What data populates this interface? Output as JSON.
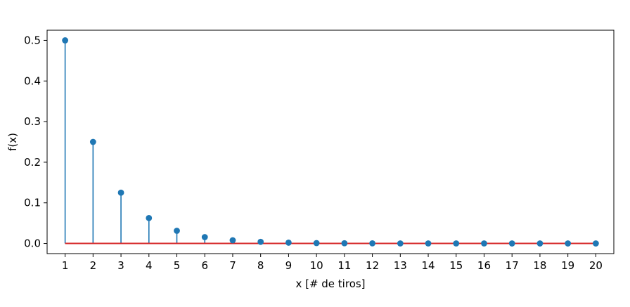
{
  "chart_data": {
    "type": "stem",
    "title": "",
    "xlabel": "x [# de tiros]",
    "ylabel": "f(x)",
    "x": [
      1,
      2,
      3,
      4,
      5,
      6,
      7,
      8,
      9,
      10,
      11,
      12,
      13,
      14,
      15,
      16,
      17,
      18,
      19,
      20
    ],
    "values": [
      0.5,
      0.25,
      0.125,
      0.0625,
      0.03125,
      0.015625,
      0.0078125,
      0.00390625,
      0.001953125,
      0.0009765625,
      0.00048828125,
      0.000244140625,
      0.0001220703125,
      6.103515625e-05,
      3.0517578125e-05,
      1.52587890625e-05,
      7.62939453125e-06,
      3.814697265625e-06,
      1.9073486328125e-06,
      9.5367431640625e-07
    ],
    "xticks": [
      "1",
      "2",
      "3",
      "4",
      "5",
      "6",
      "7",
      "8",
      "9",
      "10",
      "11",
      "12",
      "13",
      "14",
      "15",
      "16",
      "17",
      "18",
      "19",
      "20"
    ],
    "yticks": [
      "0.0",
      "0.1",
      "0.2",
      "0.3",
      "0.4",
      "0.5"
    ],
    "ytick_values": [
      0.0,
      0.1,
      0.2,
      0.3,
      0.4,
      0.5
    ],
    "xlim": [
      0.355,
      20.645
    ],
    "ylim": [
      -0.025,
      0.525
    ],
    "grid": false,
    "colors": {
      "stem": "#1f77b4",
      "baseline": "#d62728"
    }
  }
}
